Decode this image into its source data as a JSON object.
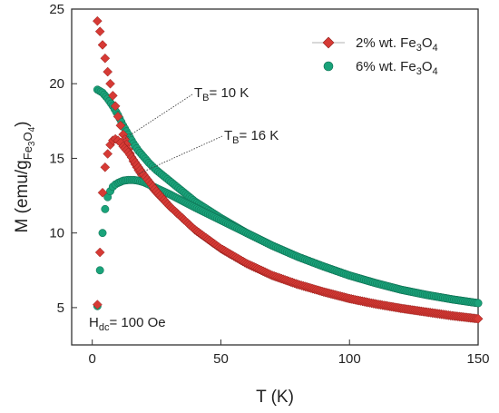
{
  "chart_data": {
    "type": "scatter",
    "xlabel": "T (K)",
    "ylabel_main": "M (emu/g",
    "ylabel_sub": "Fe",
    "ylabel_sub2": "3",
    "ylabel_sub3": "O",
    "ylabel_sub4": "4",
    "ylabel_close": ")",
    "xlim": [
      -8,
      150
    ],
    "ylim": [
      2.5,
      25
    ],
    "xticks": [
      0,
      50,
      100,
      150
    ],
    "yticks": [
      5,
      10,
      15,
      20,
      25
    ],
    "legend_position": "top-right",
    "series": [
      {
        "legend": {
          "pre": "2% wt. Fe",
          "s1": "3",
          "mid": "O",
          "s2": "4"
        },
        "color": "#d63a35",
        "marker": "diamond",
        "x": [
          2,
          3,
          4,
          5,
          6,
          7,
          8,
          9,
          10,
          11,
          12,
          14,
          16,
          18,
          20,
          25,
          30,
          40,
          50,
          60,
          70,
          80,
          90,
          100,
          110,
          120,
          130,
          140,
          150
        ],
        "y": [
          5.2,
          8.7,
          12.7,
          14.4,
          15.3,
          15.9,
          16.2,
          16.3,
          16.2,
          16.05,
          15.8,
          15.4,
          14.9,
          14.4,
          13.9,
          12.8,
          11.8,
          10.2,
          8.95,
          7.95,
          7.15,
          6.55,
          6.05,
          5.6,
          5.25,
          4.95,
          4.7,
          4.45,
          4.25
        ]
      },
      {
        "legend": {
          "pre": "6% wt. Fe",
          "s1": "3",
          "mid": "O",
          "s2": "4"
        },
        "color": "#1aa37a",
        "marker": "circle",
        "x": [
          2,
          3,
          4,
          5,
          6,
          7,
          8,
          9,
          10,
          12,
          14,
          16,
          18,
          20,
          22,
          25,
          30,
          40,
          50,
          60,
          70,
          80,
          90,
          100,
          110,
          120,
          130,
          140,
          150
        ],
        "y": [
          5.1,
          7.5,
          10.0,
          11.6,
          12.4,
          12.8,
          13.1,
          13.25,
          13.35,
          13.5,
          13.55,
          13.55,
          13.5,
          13.4,
          13.25,
          13.0,
          12.6,
          11.7,
          10.85,
          10.0,
          9.15,
          8.4,
          7.75,
          7.15,
          6.65,
          6.2,
          5.85,
          5.55,
          5.3
        ]
      }
    ],
    "fc_series": [
      {
        "color": "#d63a35",
        "marker": "diamond",
        "x": [
          2,
          3,
          4,
          5,
          6,
          7,
          8,
          9,
          10,
          11,
          12,
          14,
          16,
          18,
          20,
          25,
          30,
          40,
          50,
          60,
          70,
          80,
          90,
          100,
          110,
          120,
          130,
          140,
          150
        ],
        "y": [
          24.2,
          23.5,
          22.6,
          21.7,
          20.8,
          20.0,
          19.2,
          18.5,
          17.8,
          17.2,
          16.6,
          15.6,
          14.8,
          14.2,
          13.7,
          12.7,
          11.8,
          10.2,
          8.95,
          7.95,
          7.15,
          6.55,
          6.05,
          5.6,
          5.25,
          4.95,
          4.7,
          4.45,
          4.25
        ]
      },
      {
        "color": "#1aa37a",
        "marker": "circle",
        "x": [
          2,
          4,
          6,
          8,
          10,
          12,
          14,
          16,
          18,
          20,
          22,
          25,
          30,
          40,
          50,
          60,
          70,
          80,
          90,
          100,
          110,
          120,
          130,
          140,
          150
        ],
        "y": [
          19.6,
          19.4,
          19.0,
          18.5,
          17.9,
          17.2,
          16.6,
          16.0,
          15.5,
          15.1,
          14.7,
          14.2,
          13.5,
          12.1,
          11.0,
          10.0,
          9.15,
          8.4,
          7.75,
          7.15,
          6.65,
          6.2,
          5.85,
          5.55,
          5.3
        ]
      }
    ],
    "annotations": [
      {
        "pre": "T",
        "sub": "B",
        "post": "= 10 K",
        "tx": 10,
        "ty": 16.2
      },
      {
        "pre": "T",
        "sub": "B",
        "post": "= 16 K",
        "tx": 16,
        "ty": 13.55
      }
    ],
    "field_label": {
      "pre": "H",
      "sub": "dc",
      "post": "= 100 Oe"
    }
  }
}
